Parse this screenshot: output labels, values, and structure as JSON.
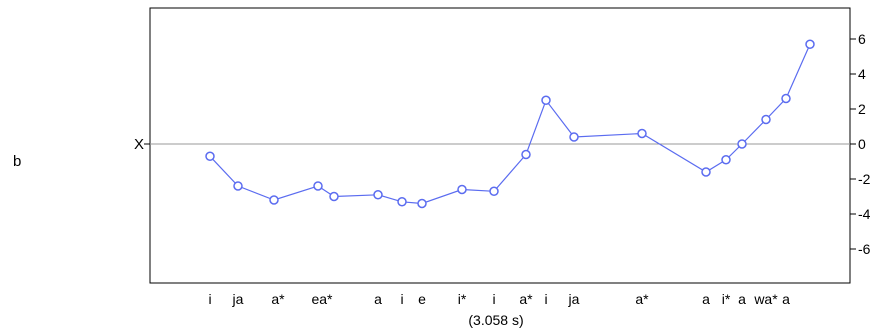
{
  "panel_label": "b",
  "chart_data": {
    "type": "line",
    "reference_line": {
      "y": 0,
      "label": "X"
    },
    "ylim": [
      -8.2,
      8.2
    ],
    "y_ticks": [
      6,
      4,
      2,
      0,
      -2,
      -4,
      -6
    ],
    "y_tick_labels": [
      "6",
      "4",
      "2",
      "0",
      "-2",
      "-4",
      "-6"
    ],
    "y_axis_side": "right",
    "grid": false,
    "footnote": "(3.058 s)",
    "series_color": "#5b6cf0",
    "category_labels": [
      "i",
      "ja",
      "a*",
      "ea*",
      "a",
      "i",
      "e",
      "i*",
      "i",
      "a*",
      "i",
      "ja",
      "a*",
      "a",
      "i*",
      "a",
      "wa*",
      "a"
    ],
    "points": [
      {
        "t": 0.3,
        "y": -0.7
      },
      {
        "t": 0.44,
        "y": -2.4
      },
      {
        "t": 0.62,
        "y": -3.2
      },
      {
        "t": 0.84,
        "y": -2.4
      },
      {
        "t": 0.92,
        "y": -3.0
      },
      {
        "t": 1.14,
        "y": -2.9
      },
      {
        "t": 1.26,
        "y": -3.3
      },
      {
        "t": 1.36,
        "y": -3.4
      },
      {
        "t": 1.56,
        "y": -2.6
      },
      {
        "t": 1.72,
        "y": -2.7
      },
      {
        "t": 1.88,
        "y": -0.6
      },
      {
        "t": 1.98,
        "y": 2.5
      },
      {
        "t": 2.12,
        "y": 0.4
      },
      {
        "t": 2.46,
        "y": 0.6
      },
      {
        "t": 2.78,
        "y": -1.6
      },
      {
        "t": 2.88,
        "y": -0.9
      },
      {
        "t": 2.96,
        "y": 0.0
      },
      {
        "t": 3.08,
        "y": 1.4
      },
      {
        "t": 3.18,
        "y": 2.6
      },
      {
        "t": 3.3,
        "y": 5.7
      }
    ]
  }
}
